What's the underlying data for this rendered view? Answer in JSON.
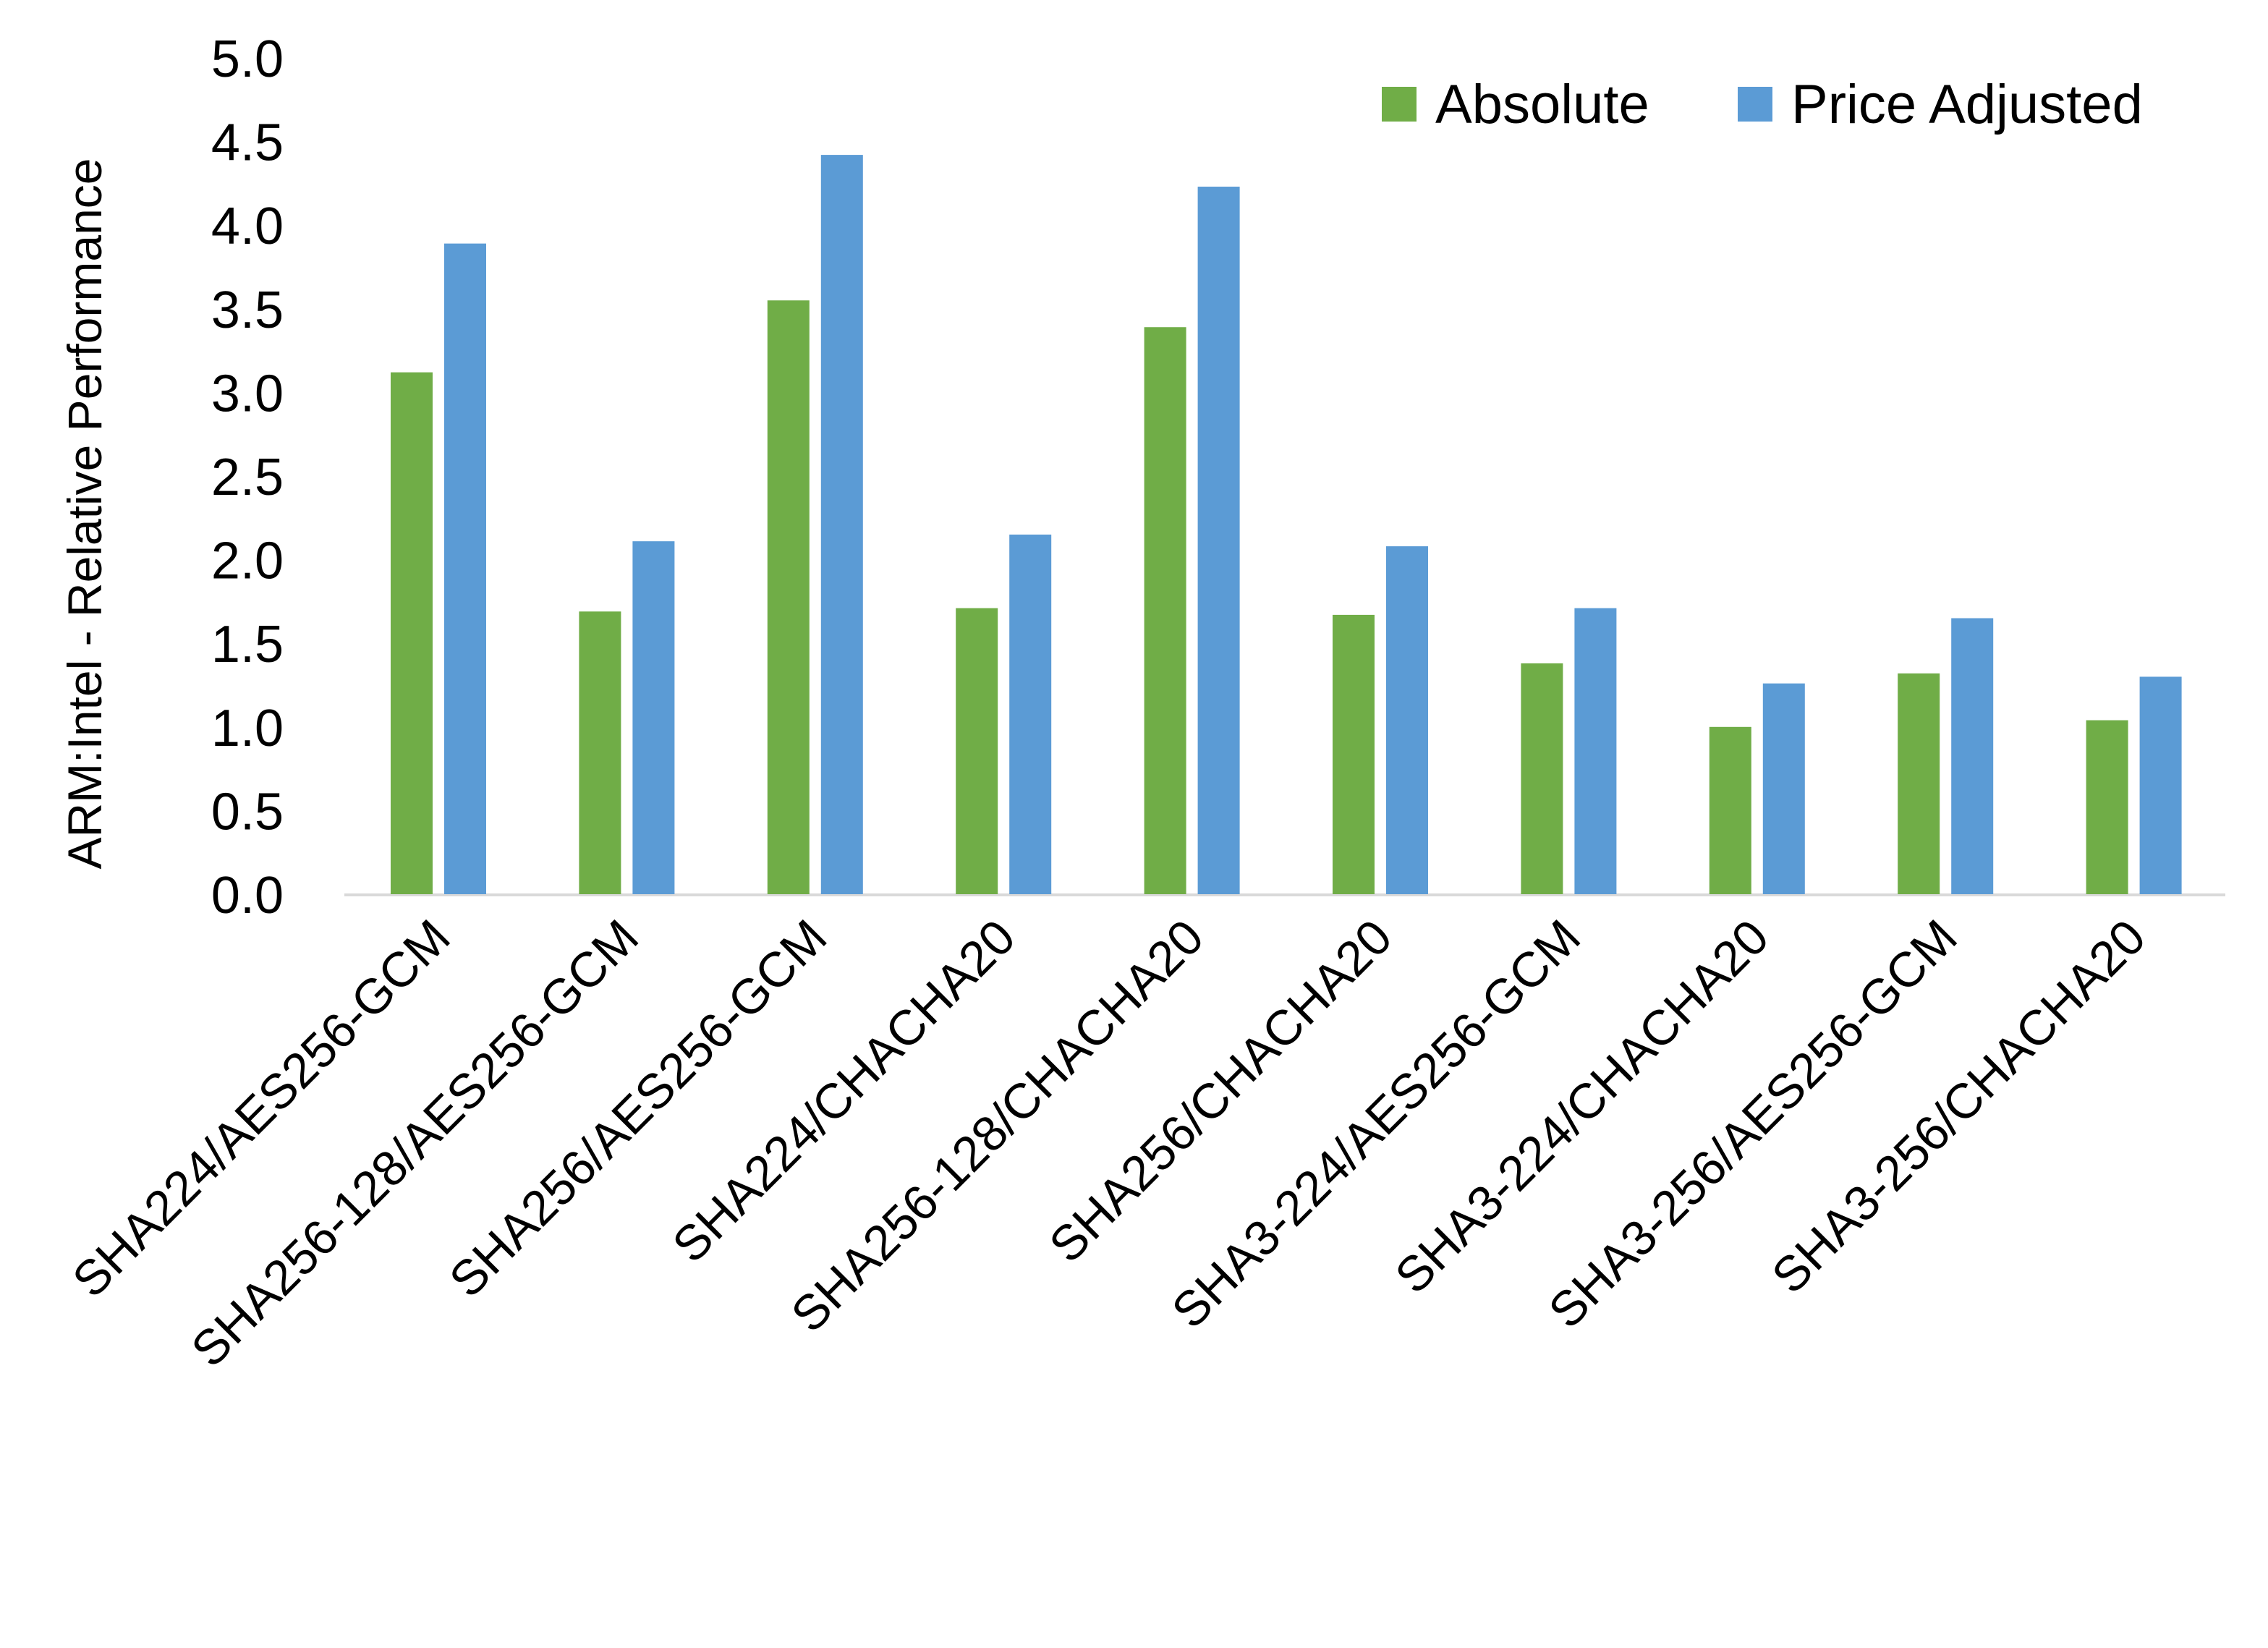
{
  "chart_data": {
    "type": "bar",
    "title": "",
    "xlabel": "",
    "ylabel": "ARM:Intel - Relative Performance",
    "ylim": [
      0,
      5
    ],
    "yticks": [
      "0.0",
      "0.5",
      "1.0",
      "1.5",
      "2.0",
      "2.5",
      "3.0",
      "3.5",
      "4.0",
      "4.5",
      "5.0"
    ],
    "grid": false,
    "legend_position": "top-right",
    "categories": [
      "SHA224/AES256-GCM",
      "SHA256-128/AES256-GCM",
      "SHA256/AES256-GCM",
      "SHA224/CHACHA20",
      "SHA256-128/CHACHA20",
      "SHA256/CHACHA20",
      "SHA3-224/AES256-GCM",
      "SHA3-224/CHACHA20",
      "SHA3-256/AES256-GCM",
      "SHA3-256/CHACHA20"
    ],
    "series": [
      {
        "name": "Absolute",
        "color": "#70AD47",
        "values": [
          3.12,
          1.69,
          3.55,
          1.71,
          3.39,
          1.67,
          1.38,
          1.0,
          1.32,
          1.04
        ]
      },
      {
        "name": "Price Adjusted",
        "color": "#5B9BD5",
        "values": [
          3.89,
          2.11,
          4.42,
          2.15,
          4.23,
          2.08,
          1.71,
          1.26,
          1.65,
          1.3
        ]
      }
    ]
  }
}
